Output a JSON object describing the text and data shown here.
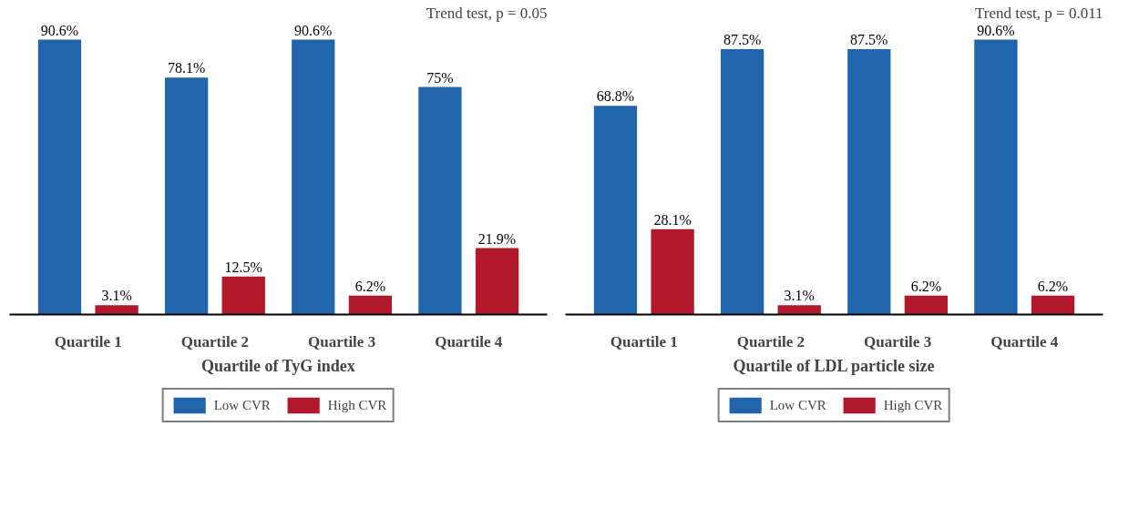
{
  "chart_data": [
    {
      "type": "bar",
      "annotations": [
        "Trend test, p = 0.05"
      ],
      "xlabel": "Quartile of TyG index",
      "categories": [
        "Quartile 1",
        "Quartile 2",
        "Quartile 3",
        "Quartile 4"
      ],
      "legend": "bottom",
      "grid": false,
      "tick_labels": "x",
      "series": [
        {
          "name": "Low CVR",
          "color": "#2166ac",
          "values": [
            90.6,
            78.1,
            90.6,
            75
          ],
          "value_labels": [
            "90.6%",
            "78.1%",
            "90.6%",
            "75%"
          ]
        },
        {
          "name": "High CVR",
          "color": "#b2182b",
          "values": [
            3.1,
            12.5,
            6.2,
            21.9
          ],
          "value_labels": [
            "3.1%",
            "12.5%",
            "6.2%",
            "21.9%"
          ]
        }
      ]
    },
    {
      "type": "bar",
      "annotations": [
        "Trend test, p = 0.011"
      ],
      "xlabel": "Quartile of LDL particle size",
      "categories": [
        "Quartile 1",
        "Quartile 2",
        "Quartile 3",
        "Quartile 4"
      ],
      "legend": "bottom",
      "grid": false,
      "tick_labels": "x",
      "series": [
        {
          "name": "Low CVR",
          "color": "#2166ac",
          "values": [
            68.8,
            87.5,
            87.5,
            90.6
          ],
          "value_labels": [
            "68.8%",
            "87.5%",
            "87.5%",
            "90.6%"
          ]
        },
        {
          "name": "High CVR",
          "color": "#b2182b",
          "values": [
            28.1,
            3.1,
            6.2,
            6.2
          ],
          "value_labels": [
            "28.1%",
            "3.1%",
            "6.2%",
            "6.2%"
          ]
        }
      ]
    }
  ]
}
